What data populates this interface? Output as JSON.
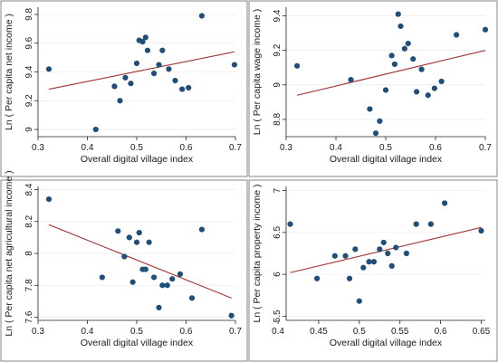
{
  "colors": {
    "point": "#1f4e79",
    "fit_line": "#a03030",
    "frame": "#666666",
    "grid": "#e6e6e6"
  },
  "chart_data": [
    {
      "type": "scatter",
      "xlabel": "Overall digital village index",
      "ylabel": "Ln ( Per capita net income )",
      "xlim": [
        0.3,
        0.7
      ],
      "ylim": [
        8.95,
        9.85
      ],
      "xticks": [
        0.3,
        0.4,
        0.5,
        0.6,
        0.7
      ],
      "yticks": [
        9,
        9.2,
        9.4,
        9.6,
        9.8
      ],
      "xtick_labels": [
        "0.3",
        "0.4",
        "0.5",
        "0.6",
        "0.7"
      ],
      "ytick_labels": [
        "9",
        "9.2",
        "9.4",
        "9.6",
        "9.8"
      ],
      "grid": true,
      "points": [
        [
          0.322,
          9.42
        ],
        [
          0.417,
          9.0
        ],
        [
          0.455,
          9.3
        ],
        [
          0.466,
          9.2
        ],
        [
          0.477,
          9.36
        ],
        [
          0.488,
          9.32
        ],
        [
          0.5,
          9.46
        ],
        [
          0.505,
          9.62
        ],
        [
          0.512,
          9.61
        ],
        [
          0.518,
          9.64
        ],
        [
          0.522,
          9.55
        ],
        [
          0.535,
          9.39
        ],
        [
          0.545,
          9.45
        ],
        [
          0.552,
          9.55
        ],
        [
          0.565,
          9.42
        ],
        [
          0.578,
          9.34
        ],
        [
          0.592,
          9.28
        ],
        [
          0.605,
          9.29
        ],
        [
          0.632,
          9.79
        ],
        [
          0.698,
          9.45
        ]
      ],
      "fit_line": [
        [
          0.322,
          9.28
        ],
        [
          0.698,
          9.54
        ]
      ]
    },
    {
      "type": "scatter",
      "xlabel": "Overall digital village index",
      "ylabel": "Ln ( Per capita wage income )",
      "xlim": [
        0.3,
        0.7
      ],
      "ylim": [
        8.7,
        9.45
      ],
      "xticks": [
        0.3,
        0.4,
        0.5,
        0.6,
        0.7
      ],
      "yticks": [
        8.8,
        9,
        9.2,
        9.4
      ],
      "xtick_labels": [
        "0.3",
        "0.4",
        "0.5",
        "0.6",
        "0.7"
      ],
      "ytick_labels": [
        "8.8",
        "9",
        "9.2",
        "9.4"
      ],
      "grid": true,
      "points": [
        [
          0.322,
          9.11
        ],
        [
          0.43,
          9.03
        ],
        [
          0.468,
          8.86
        ],
        [
          0.48,
          8.72
        ],
        [
          0.488,
          8.79
        ],
        [
          0.5,
          8.97
        ],
        [
          0.512,
          9.17
        ],
        [
          0.518,
          9.12
        ],
        [
          0.525,
          9.41
        ],
        [
          0.53,
          9.34
        ],
        [
          0.538,
          9.21
        ],
        [
          0.545,
          9.24
        ],
        [
          0.555,
          9.15
        ],
        [
          0.562,
          8.96
        ],
        [
          0.572,
          9.09
        ],
        [
          0.585,
          8.94
        ],
        [
          0.598,
          8.98
        ],
        [
          0.612,
          9.02
        ],
        [
          0.642,
          9.29
        ],
        [
          0.7,
          9.32
        ]
      ],
      "fit_line": [
        [
          0.322,
          8.94
        ],
        [
          0.7,
          9.2
        ]
      ]
    },
    {
      "type": "scatter",
      "xlabel": "Overall digital village index",
      "ylabel": "Ln ( Per capita net agricultural income )",
      "xlim": [
        0.3,
        0.7
      ],
      "ylim": [
        7.58,
        8.42
      ],
      "xticks": [
        0.3,
        0.4,
        0.5,
        0.6,
        0.7
      ],
      "yticks": [
        7.6,
        7.8,
        8,
        8.2,
        8.4
      ],
      "xtick_labels": [
        "0.3",
        "0.4",
        "0.5",
        "0.6",
        "0.7"
      ],
      "ytick_labels": [
        "7.6",
        "7.8",
        "8",
        "8.2",
        "8.4"
      ],
      "grid": true,
      "points": [
        [
          0.322,
          8.34
        ],
        [
          0.43,
          7.85
        ],
        [
          0.462,
          8.14
        ],
        [
          0.475,
          7.98
        ],
        [
          0.485,
          8.1
        ],
        [
          0.492,
          7.82
        ],
        [
          0.5,
          8.07
        ],
        [
          0.505,
          8.13
        ],
        [
          0.512,
          7.9
        ],
        [
          0.518,
          7.9
        ],
        [
          0.525,
          8.07
        ],
        [
          0.535,
          7.85
        ],
        [
          0.545,
          7.66
        ],
        [
          0.552,
          7.8
        ],
        [
          0.562,
          7.8
        ],
        [
          0.572,
          7.84
        ],
        [
          0.588,
          7.87
        ],
        [
          0.612,
          7.72
        ],
        [
          0.632,
          8.15
        ],
        [
          0.692,
          7.61
        ]
      ],
      "fit_line": [
        [
          0.322,
          8.18
        ],
        [
          0.692,
          7.72
        ]
      ]
    },
    {
      "type": "scatter",
      "xlabel": "Overall digital village index",
      "ylabel": "Ln ( Per capita property income )",
      "xlim": [
        0.41,
        0.655
      ],
      "ylim": [
        5.45,
        7.05
      ],
      "xticks": [
        0.4,
        0.45,
        0.5,
        0.55,
        0.6,
        0.65
      ],
      "yticks": [
        5.5,
        6,
        6.5,
        7
      ],
      "xtick_labels": [
        "0.4",
        "0.45",
        "0.5",
        "0.55",
        "0.6",
        "0.65"
      ],
      "ytick_labels": [
        "5.5",
        "6",
        "6.5",
        "7"
      ],
      "grid": true,
      "points": [
        [
          0.415,
          6.6
        ],
        [
          0.448,
          5.95
        ],
        [
          0.47,
          6.22
        ],
        [
          0.483,
          6.22
        ],
        [
          0.488,
          5.95
        ],
        [
          0.495,
          6.3
        ],
        [
          0.5,
          5.68
        ],
        [
          0.505,
          6.08
        ],
        [
          0.512,
          6.15
        ],
        [
          0.518,
          6.15
        ],
        [
          0.525,
          6.3
        ],
        [
          0.53,
          6.38
        ],
        [
          0.535,
          6.25
        ],
        [
          0.54,
          6.1
        ],
        [
          0.545,
          6.32
        ],
        [
          0.558,
          6.25
        ],
        [
          0.57,
          6.6
        ],
        [
          0.588,
          6.6
        ],
        [
          0.605,
          6.85
        ],
        [
          0.65,
          6.52
        ]
      ],
      "fit_line": [
        [
          0.415,
          6.02
        ],
        [
          0.65,
          6.56
        ]
      ]
    }
  ]
}
